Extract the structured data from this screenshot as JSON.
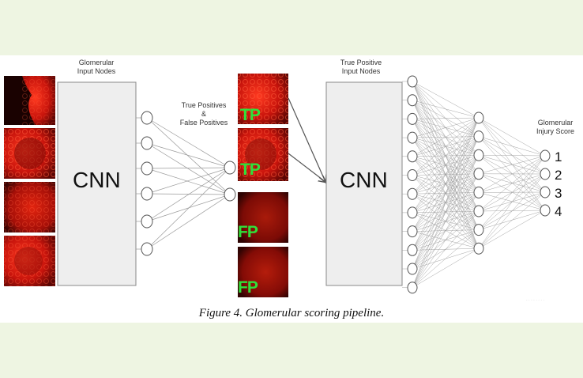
{
  "labels": {
    "input_nodes_l1": "Glomerular",
    "input_nodes_l2": "Input Nodes",
    "tp_fp_l1": "True Positives",
    "tp_fp_l2": "&",
    "tp_fp_l3": "False Positives",
    "tp_input_l1": "True Positive",
    "tp_input_l2": "Input Nodes",
    "injury_l1": "Glomerular",
    "injury_l2": "Injury Score"
  },
  "cnn_label": "CNN",
  "image_tags": [
    "TP",
    "TP",
    "FP",
    "FP"
  ],
  "scores": [
    "1",
    "2",
    "3",
    "4"
  ],
  "caption": "Figure 4. Glomerular scoring pipeline.",
  "colors": {
    "background": "#eef5e2",
    "tissue": "#d81a10",
    "tag": "#2fe03a"
  }
}
